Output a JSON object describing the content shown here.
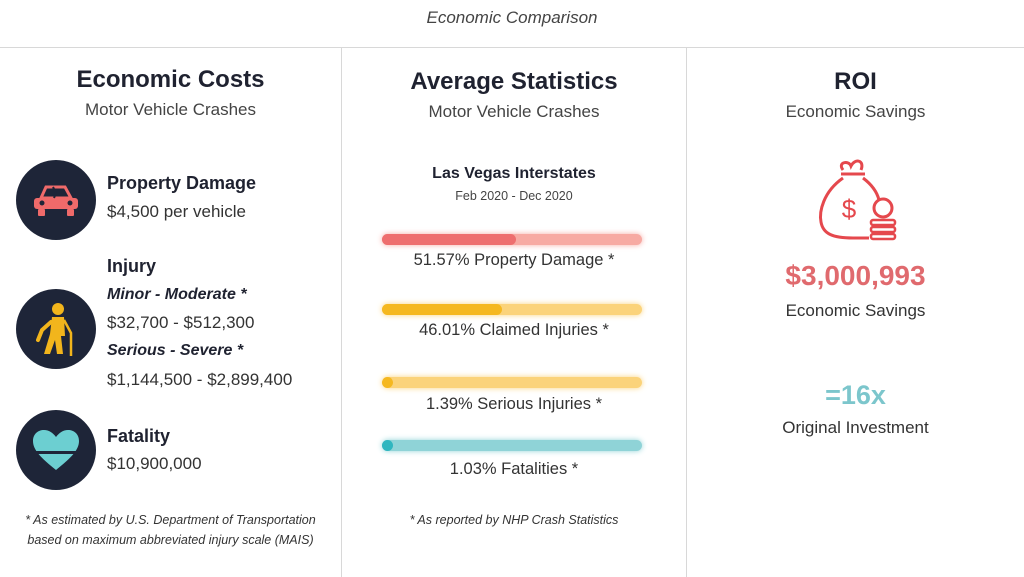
{
  "header": {
    "title": "Economic Comparison"
  },
  "costs": {
    "title": "Economic Costs",
    "subtitle": "Motor Vehicle Crashes",
    "property": {
      "heading": "Property Damage",
      "value": "$4,500 per vehicle"
    },
    "injury": {
      "heading": "Injury",
      "minor_label": "Minor - Moderate *",
      "minor_value": "$32,700 - $512,300",
      "serious_label": "Serious - Severe *",
      "serious_value": "$1,144,500 - $2,899,400"
    },
    "fatality": {
      "heading": "Fatality",
      "value": "$10,900,000"
    },
    "footnote_line1": "* As estimated by U.S. Department of Transportation",
    "footnote_line2": "based on maximum abbreviated injury scale (MAIS)",
    "icons": [
      "car-icon",
      "injured-person-icon",
      "heart-icon"
    ]
  },
  "stats": {
    "title": "Average Statistics",
    "subtitle": "Motor Vehicle Crashes",
    "location": "Las Vegas Interstates",
    "dates": "Feb 2020 - Dec 2020",
    "footnote": "* As reported by NHP Crash Statistics"
  },
  "roi": {
    "title": "ROI",
    "subtitle": "Economic Savings",
    "amount": "$3,000,993",
    "amount_label": "Economic Savings",
    "multiplier": "=16x",
    "multiplier_label": "Original Investment",
    "icon": "money-bag-icon"
  },
  "chart_data": {
    "type": "bar",
    "orientation": "horizontal",
    "title": "Average Statistics",
    "categories": [
      "Property Damage",
      "Claimed Injuries",
      "Serious Injuries",
      "Fatalities"
    ],
    "values": [
      51.57,
      46.01,
      1.39,
      1.03
    ],
    "labels": [
      "51.57% Property Damage *",
      "46.01% Claimed Injuries *",
      "1.39% Serious Injuries *",
      "1.03% Fatalities *"
    ],
    "xlim": [
      0,
      100
    ],
    "fill_colors": [
      "#ee6e6e",
      "#f5b820",
      "#f5b820",
      "#2fb6bf"
    ],
    "track_colors": [
      "#f7aaa3",
      "#fbd37a",
      "#fbd37a",
      "#8fd3d7"
    ]
  },
  "colors": {
    "navy": "#1e2538",
    "coral": "#e06a6e",
    "teal": "#7cc6cc"
  }
}
